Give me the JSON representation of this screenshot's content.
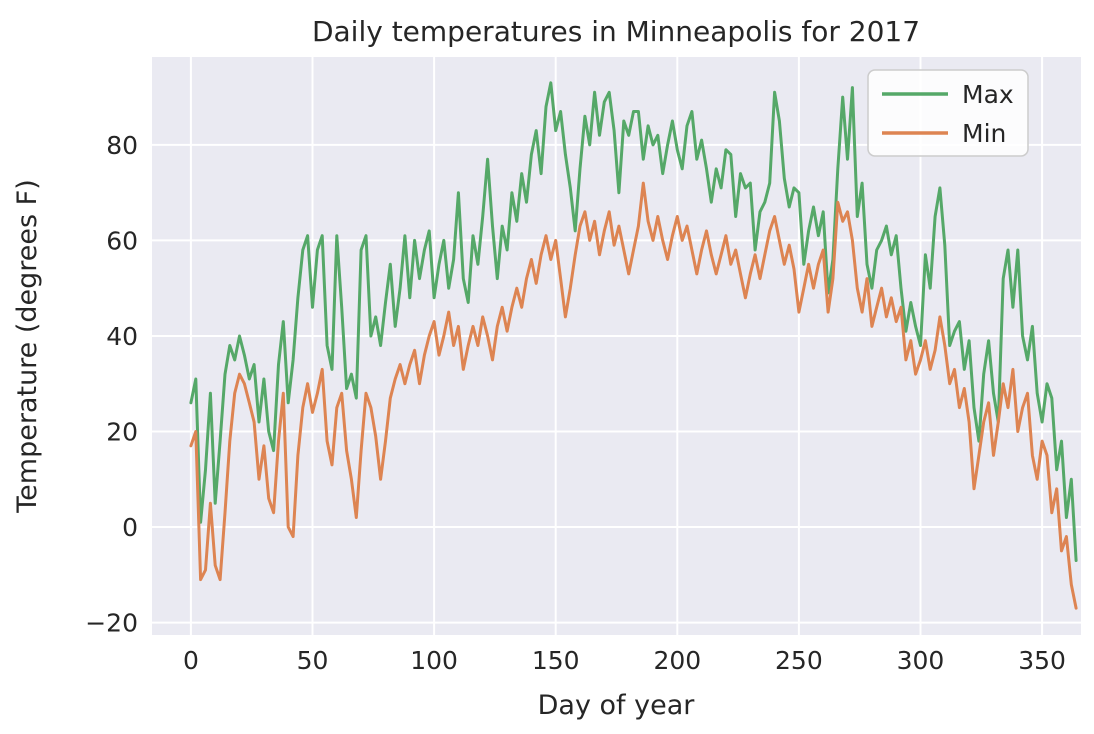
{
  "chart_data": {
    "type": "line",
    "title": "Daily temperatures in Minneapolis for 2017",
    "xlabel": "Day of year",
    "ylabel": "Temperature (degrees F)",
    "x_ticks": [
      0,
      50,
      100,
      150,
      200,
      250,
      300,
      350
    ],
    "y_ticks": [
      -20,
      0,
      20,
      40,
      60,
      80
    ],
    "xlim": [
      -16,
      366
    ],
    "ylim": [
      -22.6,
      98.4
    ],
    "grid": "on",
    "plot_background": "#eaeaf2",
    "grid_color": "#ffffff",
    "legend": {
      "position": "upper right",
      "border_color": "#cccccc",
      "background": "rgba(255,255,255,0.85)"
    },
    "x": {
      "start_day": 0,
      "step_days": 2
    },
    "series": [
      {
        "name": "Max",
        "color": "#55a868",
        "values": [
          26,
          31,
          1,
          12,
          28,
          5,
          18,
          32,
          38,
          35,
          40,
          36,
          31,
          34,
          22,
          31,
          20,
          16,
          34,
          43,
          26,
          35,
          48,
          58,
          61,
          46,
          58,
          61,
          38,
          33,
          61,
          46,
          29,
          32,
          27,
          58,
          61,
          40,
          44,
          38,
          47,
          55,
          42,
          50,
          61,
          48,
          60,
          52,
          58,
          62,
          48,
          55,
          60,
          50,
          56,
          70,
          52,
          47,
          61,
          55,
          65,
          77,
          63,
          52,
          63,
          58,
          70,
          64,
          74,
          68,
          78,
          83,
          74,
          88,
          93,
          83,
          87,
          78,
          71,
          62,
          75,
          86,
          80,
          91,
          82,
          89,
          91,
          83,
          70,
          85,
          82,
          87,
          87,
          77,
          84,
          80,
          82,
          74,
          80,
          85,
          79,
          75,
          84,
          87,
          77,
          81,
          75,
          68,
          75,
          71,
          79,
          78,
          65,
          74,
          71,
          72,
          58,
          66,
          68,
          72,
          91,
          85,
          73,
          67,
          71,
          70,
          55,
          62,
          67,
          61,
          66,
          49,
          56,
          75,
          90,
          77,
          92,
          65,
          72,
          55,
          50,
          58,
          60,
          63,
          57,
          61,
          50,
          41,
          47,
          42,
          38,
          57,
          50,
          65,
          71,
          59,
          38,
          41,
          43,
          33,
          39,
          25,
          18,
          32,
          39,
          28,
          22,
          52,
          58,
          46,
          58,
          40,
          35,
          42,
          28,
          22,
          30,
          27,
          12,
          18,
          2,
          10,
          -7
        ]
      },
      {
        "name": "Min",
        "color": "#dd8452",
        "values": [
          17,
          20,
          -11,
          -9,
          5,
          -8,
          -11,
          3,
          18,
          28,
          32,
          30,
          26,
          22,
          10,
          17,
          6,
          3,
          18,
          28,
          0,
          -2,
          15,
          25,
          30,
          24,
          28,
          33,
          18,
          13,
          25,
          28,
          16,
          10,
          2,
          16,
          28,
          25,
          19,
          10,
          18,
          27,
          31,
          34,
          30,
          34,
          37,
          30,
          36,
          40,
          43,
          36,
          40,
          45,
          38,
          42,
          33,
          38,
          42,
          38,
          44,
          40,
          35,
          42,
          46,
          41,
          46,
          50,
          46,
          52,
          56,
          51,
          57,
          61,
          56,
          60,
          52,
          44,
          50,
          57,
          63,
          66,
          60,
          64,
          57,
          62,
          66,
          59,
          63,
          58,
          53,
          58,
          63,
          72,
          64,
          60,
          65,
          60,
          56,
          61,
          65,
          60,
          63,
          58,
          53,
          58,
          62,
          57,
          53,
          57,
          61,
          55,
          58,
          53,
          48,
          53,
          57,
          52,
          57,
          62,
          65,
          60,
          55,
          59,
          54,
          45,
          50,
          55,
          50,
          55,
          58,
          45,
          52,
          68,
          64,
          66,
          60,
          50,
          45,
          52,
          42,
          46,
          50,
          44,
          48,
          43,
          46,
          35,
          39,
          32,
          35,
          39,
          33,
          37,
          44,
          38,
          30,
          33,
          25,
          29,
          22,
          8,
          15,
          22,
          26,
          15,
          22,
          30,
          25,
          33,
          20,
          25,
          28,
          15,
          10,
          18,
          15,
          3,
          8,
          -5,
          -2,
          -12,
          -17
        ]
      }
    ]
  }
}
